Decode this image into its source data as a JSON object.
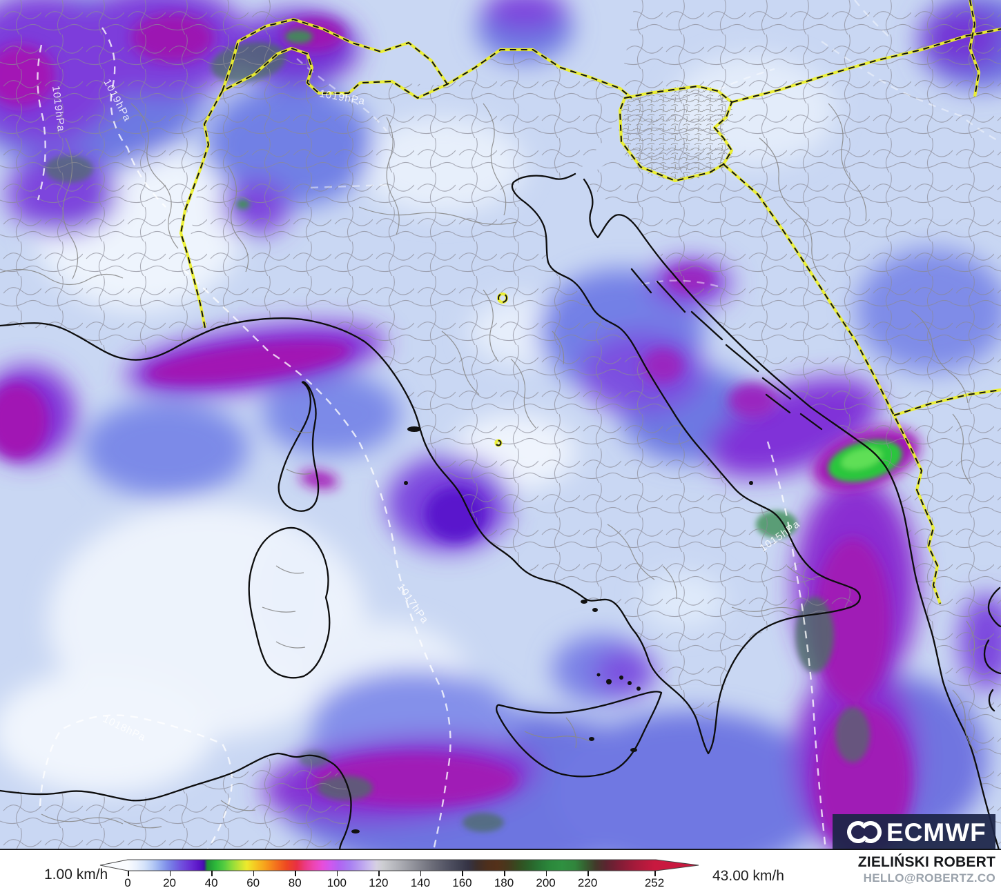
{
  "map": {
    "pressure_labels": [
      {
        "text": "1019hPa"
      },
      {
        "text": "1019hPa"
      },
      {
        "text": "1019hPa"
      },
      {
        "text": "1017hPa"
      },
      {
        "text": "1018hPa"
      },
      {
        "text": "1015hPa"
      }
    ],
    "logo": {
      "text": "ECMWF"
    }
  },
  "legend": {
    "min_label": "1.00 km/h",
    "max_label": "43.00 km/h",
    "unit": "km/h",
    "ticks": [
      0,
      20,
      40,
      60,
      80,
      100,
      120,
      140,
      160,
      180,
      200,
      220,
      252
    ],
    "gradient": [
      {
        "value": 0,
        "color": "#fafcff"
      },
      {
        "value": 12,
        "color": "#b4c9f5"
      },
      {
        "value": 22,
        "color": "#7472e4"
      },
      {
        "value": 31,
        "color": "#6728d2"
      },
      {
        "value": 36,
        "color": "#4a10b0"
      },
      {
        "value": 42,
        "color": "#2db83a"
      },
      {
        "value": 54,
        "color": "#c8e433"
      },
      {
        "value": 61,
        "color": "#f5c822"
      },
      {
        "value": 76,
        "color": "#ee4722"
      },
      {
        "value": 89,
        "color": "#ed45b2"
      },
      {
        "value": 101,
        "color": "#b263f2"
      },
      {
        "value": 116,
        "color": "#ccbeee"
      },
      {
        "value": 128,
        "color": "#b5b6bc"
      },
      {
        "value": 152,
        "color": "#555666"
      },
      {
        "value": 172,
        "color": "#4e2f1c"
      },
      {
        "value": 192,
        "color": "#2a6129"
      },
      {
        "value": 208,
        "color": "#2f9040"
      },
      {
        "value": 229,
        "color": "#5c2430"
      },
      {
        "value": 252,
        "color": "#c8193f"
      }
    ]
  },
  "attribution": {
    "name": "ZIELIŃSKI ROBERT",
    "contact": "HELLO@ROBERTZ.CO"
  },
  "colors": {
    "sea_base": "#c9d7f3",
    "border_yellow": "#ecf02c",
    "magenta": "#a315b5",
    "bright_green": "#2bc63e",
    "logo_navy": "#1c2547"
  }
}
